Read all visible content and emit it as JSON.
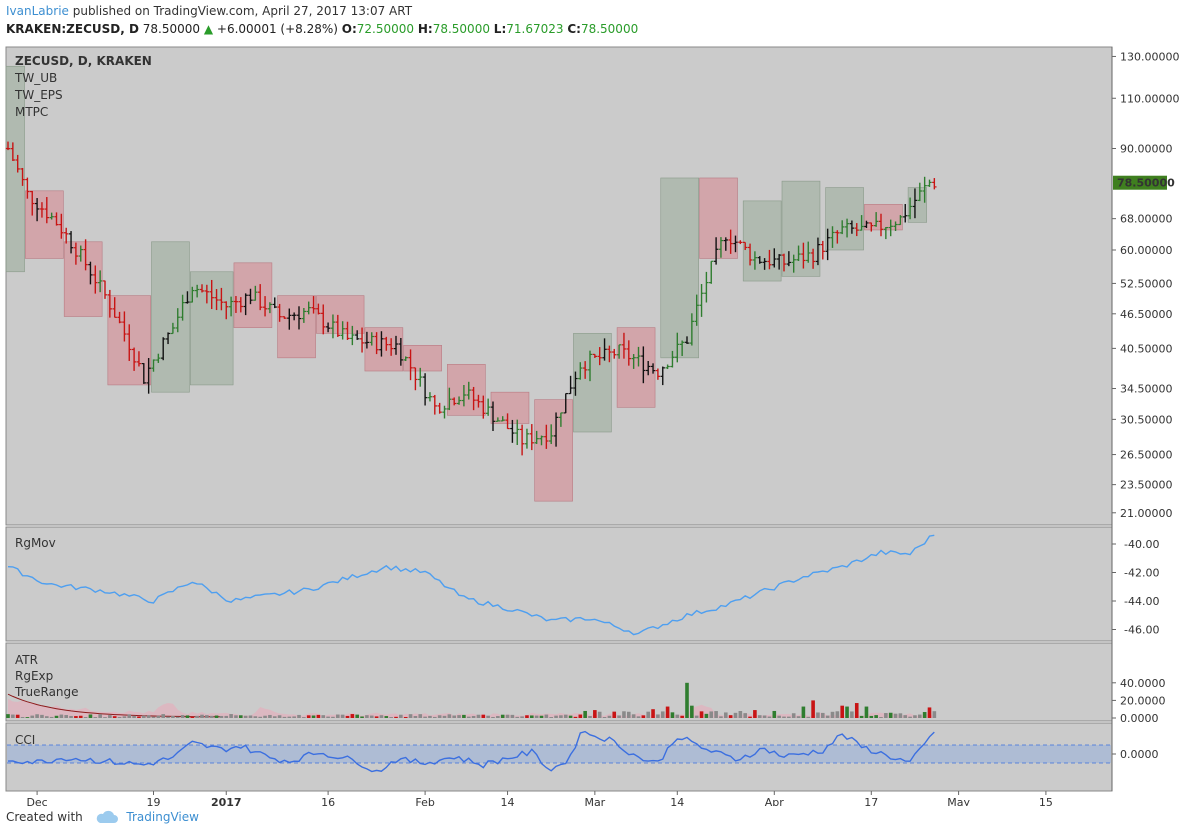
{
  "header": {
    "author": "IvanLabrie",
    "published_text": " published on TradingView.com, April 27, 2017 13:07 ART",
    "symbol": "KRAKEN:ZECUSD, D",
    "last": "78.50000",
    "change": "+6.00001 (+8.28%)",
    "o_label": "O:",
    "o": "72.50000",
    "h_label": "H:",
    "h": "78.50000",
    "l_label": "L:",
    "l": "71.67023",
    "c_label": "C:",
    "c": "78.50000"
  },
  "footer": {
    "created_with": "Created with",
    "brand": "TradingView"
  },
  "colors": {
    "pane_bg": "#cbcbcb",
    "bull": "#2f7d2f",
    "bear": "#c81414",
    "neutral": "#111111",
    "red_box": "rgba(220,120,130,0.45)",
    "green_box": "rgba(150,170,150,0.5)",
    "rgmov": "#4e9ff0",
    "cci": "#3b6fe0",
    "cci_band": "rgba(120,160,230,0.35)",
    "price_tag": "#3f7f1f"
  },
  "chart_data": [
    {
      "type": "candlestick",
      "title": "ZECUSD, D, KRAKEN",
      "legend": [
        "TW_UB",
        "TW_EPS",
        "MTPC"
      ],
      "y_ticks": [
        130,
        110,
        90,
        78.5,
        68,
        60,
        52.5,
        46.5,
        40.5,
        34.5,
        30.5,
        26.5,
        23.5,
        21
      ],
      "y_tick_labels": [
        "130.00000",
        "110.00000",
        "90.00000",
        "78.50000",
        "68.00000",
        "60.00000",
        "52.50000",
        "46.50000",
        "40.50000",
        "34.50000",
        "30.50000",
        "26.50000",
        "23.50000",
        "21.00000"
      ],
      "last_price_label": "78.50000",
      "x_tick_labels": [
        "Dec",
        "19",
        "2017",
        "16",
        "Feb",
        "14",
        "Mar",
        "14",
        "Apr",
        "17",
        "May",
        "15"
      ],
      "anchors": [
        [
          0,
          90
        ],
        [
          4,
          75
        ],
        [
          10,
          67
        ],
        [
          20,
          50
        ],
        [
          28,
          36
        ],
        [
          34,
          44
        ],
        [
          38,
          52
        ],
        [
          45,
          48
        ],
        [
          50,
          50
        ],
        [
          56,
          46
        ],
        [
          62,
          47
        ],
        [
          70,
          42
        ],
        [
          80,
          41
        ],
        [
          88,
          32
        ],
        [
          94,
          34
        ],
        [
          100,
          31
        ],
        [
          106,
          28
        ],
        [
          112,
          29
        ],
        [
          118,
          38
        ],
        [
          126,
          40
        ],
        [
          134,
          37
        ],
        [
          140,
          42
        ],
        [
          148,
          64
        ],
        [
          154,
          58
        ],
        [
          160,
          57
        ],
        [
          166,
          59
        ],
        [
          172,
          65
        ],
        [
          178,
          65
        ],
        [
          184,
          68
        ],
        [
          190,
          78.5
        ]
      ],
      "boxes": [
        {
          "from": 0,
          "to": 3,
          "low": 55,
          "high": 125,
          "kind": "green"
        },
        {
          "from": 4,
          "to": 11,
          "low": 58,
          "high": 76,
          "kind": "red"
        },
        {
          "from": 12,
          "to": 19,
          "low": 46,
          "high": 62,
          "kind": "red"
        },
        {
          "from": 21,
          "to": 29,
          "low": 35,
          "high": 50,
          "kind": "red"
        },
        {
          "from": 30,
          "to": 37,
          "low": 34,
          "high": 62,
          "kind": "green"
        },
        {
          "from": 38,
          "to": 46,
          "low": 35,
          "high": 55,
          "kind": "green"
        },
        {
          "from": 47,
          "to": 54,
          "low": 44,
          "high": 57,
          "kind": "red"
        },
        {
          "from": 56,
          "to": 63,
          "low": 39,
          "high": 50,
          "kind": "red"
        },
        {
          "from": 64,
          "to": 73,
          "low": 43,
          "high": 50,
          "kind": "red"
        },
        {
          "from": 74,
          "to": 81,
          "low": 37,
          "high": 44,
          "kind": "red"
        },
        {
          "from": 82,
          "to": 89,
          "low": 37,
          "high": 41,
          "kind": "red"
        },
        {
          "from": 91,
          "to": 98,
          "low": 31,
          "high": 38,
          "kind": "red"
        },
        {
          "from": 100,
          "to": 107,
          "low": 30,
          "high": 34,
          "kind": "red"
        },
        {
          "from": 109,
          "to": 116,
          "low": 22,
          "high": 33,
          "kind": "red"
        },
        {
          "from": 117,
          "to": 124,
          "low": 29,
          "high": 43,
          "kind": "green"
        },
        {
          "from": 126,
          "to": 133,
          "low": 32,
          "high": 44,
          "kind": "red"
        },
        {
          "from": 135,
          "to": 142,
          "low": 39,
          "high": 80,
          "kind": "green"
        },
        {
          "from": 143,
          "to": 150,
          "low": 58,
          "high": 80,
          "kind": "red"
        },
        {
          "from": 152,
          "to": 159,
          "low": 53,
          "high": 73,
          "kind": "green"
        },
        {
          "from": 160,
          "to": 167,
          "low": 54,
          "high": 79,
          "kind": "green"
        },
        {
          "from": 169,
          "to": 176,
          "low": 60,
          "high": 77,
          "kind": "green"
        },
        {
          "from": 177,
          "to": 184,
          "low": 65,
          "high": 72,
          "kind": "red"
        },
        {
          "from": 186,
          "to": 189,
          "low": 67,
          "high": 77,
          "kind": "green"
        }
      ]
    },
    {
      "type": "line",
      "title": "RgMov",
      "y_ticks": [
        -40,
        -42,
        -44,
        -46
      ],
      "y_tick_labels": [
        "-40.00",
        "-42.00",
        "-44.00",
        "-46.00"
      ],
      "anchors": [
        [
          0,
          -41.6
        ],
        [
          8,
          -42.8
        ],
        [
          20,
          -43.3
        ],
        [
          30,
          -44.0
        ],
        [
          38,
          -42.6
        ],
        [
          46,
          -44.0
        ],
        [
          54,
          -43.6
        ],
        [
          62,
          -43.2
        ],
        [
          72,
          -42.2
        ],
        [
          78,
          -41.6
        ],
        [
          86,
          -42.0
        ],
        [
          94,
          -43.8
        ],
        [
          104,
          -44.6
        ],
        [
          112,
          -45.4
        ],
        [
          120,
          -45.2
        ],
        [
          130,
          -46.3
        ],
        [
          140,
          -45.0
        ],
        [
          148,
          -44.3
        ],
        [
          156,
          -43.3
        ],
        [
          164,
          -42.3
        ],
        [
          172,
          -41.6
        ],
        [
          180,
          -40.6
        ],
        [
          186,
          -40.7
        ],
        [
          191,
          -39.3
        ]
      ]
    },
    {
      "type": "bar",
      "title": "ATR",
      "legend": [
        "ATR",
        "RgExp",
        "TrueRange"
      ],
      "y_ticks": [
        40,
        20,
        0
      ],
      "y_tick_labels": [
        "40.0000",
        "20.0000",
        "0.0000"
      ],
      "highlights": [
        [
          140,
          40
        ],
        [
          136,
          13
        ],
        [
          141,
          14
        ],
        [
          166,
          20
        ],
        [
          175,
          17
        ],
        [
          177,
          13
        ],
        [
          164,
          13
        ],
        [
          172,
          14
        ],
        [
          133,
          10
        ],
        [
          119,
          8
        ],
        [
          121,
          9
        ],
        [
          154,
          9
        ],
        [
          158,
          8
        ],
        [
          173,
          13
        ],
        [
          190,
          12
        ]
      ]
    },
    {
      "type": "line",
      "title": "CCI",
      "y_ticks": [
        0
      ],
      "y_tick_labels": [
        "0.0000"
      ],
      "band": [
        -100,
        100
      ],
      "anchors": [
        [
          0,
          -60
        ],
        [
          6,
          -90
        ],
        [
          12,
          -40
        ],
        [
          20,
          -80
        ],
        [
          28,
          -120
        ],
        [
          34,
          -40
        ],
        [
          38,
          120
        ],
        [
          44,
          50
        ],
        [
          48,
          90
        ],
        [
          54,
          -40
        ],
        [
          58,
          -80
        ],
        [
          64,
          20
        ],
        [
          72,
          -80
        ],
        [
          76,
          -200
        ],
        [
          80,
          -60
        ],
        [
          86,
          -100
        ],
        [
          92,
          -30
        ],
        [
          98,
          -120
        ],
        [
          104,
          -30
        ],
        [
          108,
          20
        ],
        [
          112,
          -180
        ],
        [
          116,
          -40
        ],
        [
          118,
          250
        ],
        [
          124,
          160
        ],
        [
          130,
          -40
        ],
        [
          134,
          -100
        ],
        [
          138,
          200
        ],
        [
          144,
          50
        ],
        [
          150,
          -60
        ],
        [
          156,
          60
        ],
        [
          160,
          -30
        ],
        [
          168,
          40
        ],
        [
          172,
          220
        ],
        [
          176,
          80
        ],
        [
          182,
          -30
        ],
        [
          186,
          -100
        ],
        [
          191,
          240
        ]
      ]
    }
  ]
}
